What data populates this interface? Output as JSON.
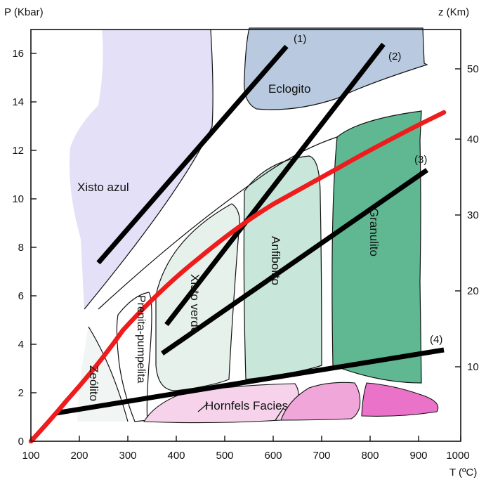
{
  "axes": {
    "left_title": "P (Kbar)",
    "right_title": "z (Km)",
    "bottom_title": "T (ºC)",
    "x_ticks": [
      "100",
      "200",
      "300",
      "400",
      "500",
      "600",
      "700",
      "800",
      "900",
      "1000"
    ],
    "y_ticks": [
      "0",
      "2",
      "4",
      "6",
      "8",
      "10",
      "12",
      "14",
      "16"
    ],
    "z_ticks": [
      "10",
      "20",
      "30",
      "40",
      "50"
    ]
  },
  "facies": {
    "blueschist": "Xisto azul",
    "eclogite": "Eclogito",
    "greenschist": "Xisto verde",
    "amphibolite": "Anfibolito",
    "granulite": "Granulito",
    "prehnite_pumpellyite": "Prenita-pumpelita",
    "zeolite": "Zeólito",
    "hornfels": "Hornfels Facies"
  },
  "line_tags": {
    "l1": "(1)",
    "l2": "(2)",
    "l3": "(3)",
    "l4": "(4)"
  },
  "colors": {
    "blueschist": "#e3e0f7",
    "eclogite": "#b8c9e0",
    "greenschist": "#e7f1ec",
    "amphibolite": "#c8e6d9",
    "granulite": "#5fb892",
    "hornfels_light": "#f6d3ea",
    "hornfels_mid": "#f0a6d8",
    "hornfels_dark": "#ea72c8",
    "geotherm": "#ee1c1c",
    "gradient_lines": "#000000"
  }
}
